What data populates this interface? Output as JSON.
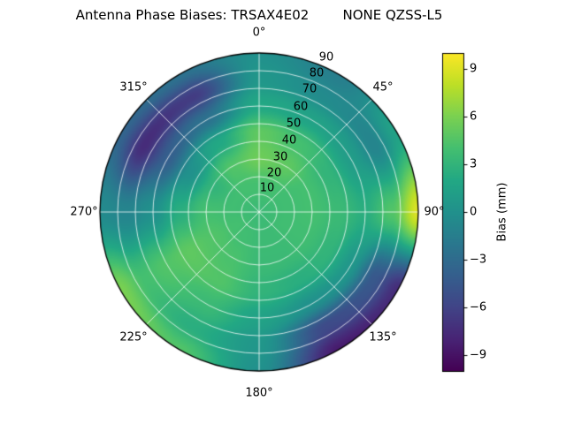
{
  "chart_data": {
    "type": "heatmap",
    "projection": "polar",
    "title": "Antenna Phase Biases: TRSAX4E02        NONE QZSS-L5",
    "angular_ticks": [
      "0°",
      "45°",
      "90°",
      "135°",
      "180°",
      "225°",
      "270°",
      "315°"
    ],
    "radial_ticks": [
      "10",
      "20",
      "30",
      "40",
      "50",
      "60",
      "70",
      "80",
      "90"
    ],
    "radial_axis": {
      "min": 0,
      "max": 90,
      "label_angle_deg": 22.5
    },
    "grid_on": true,
    "colorbar": {
      "label": "Bias (mm)",
      "vmin": -10,
      "vmax": 10,
      "ticks": [
        9,
        6,
        3,
        0,
        -3,
        -6,
        -9
      ],
      "tick_labels": [
        "9",
        "6",
        "3",
        "0",
        "−3",
        "−6",
        "−9"
      ]
    },
    "colormap": {
      "name": "viridis",
      "stops": [
        [
          0.0,
          "#440154"
        ],
        [
          0.1,
          "#482475"
        ],
        [
          0.2,
          "#414487"
        ],
        [
          0.3,
          "#355f8d"
        ],
        [
          0.4,
          "#2a788e"
        ],
        [
          0.5,
          "#21918c"
        ],
        [
          0.6,
          "#22a884"
        ],
        [
          0.7,
          "#44bf70"
        ],
        [
          0.8,
          "#7ad151"
        ],
        [
          0.9,
          "#bddf26"
        ],
        [
          1.0,
          "#fde725"
        ]
      ]
    },
    "grid": {
      "azimuth_deg": [
        0,
        30,
        60,
        90,
        120,
        150,
        180,
        210,
        240,
        270,
        300,
        330,
        360
      ],
      "zenith_deg": [
        0,
        15,
        30,
        45,
        60,
        75,
        90
      ],
      "bias_mm": [
        [
          3.5,
          4.0,
          5.5,
          5.0,
          2.0,
          0.5,
          0.0
        ],
        [
          3.5,
          4.0,
          5.0,
          4.0,
          1.5,
          -0.5,
          -1.5
        ],
        [
          3.5,
          3.8,
          4.0,
          3.0,
          1.0,
          -1.0,
          1.5
        ],
        [
          3.5,
          3.8,
          4.0,
          3.5,
          2.5,
          4.5,
          9.0
        ],
        [
          3.5,
          3.8,
          3.8,
          3.0,
          0.5,
          -4.5,
          -7.5
        ],
        [
          3.5,
          3.6,
          3.5,
          2.5,
          0.0,
          -5.5,
          -8.5
        ],
        [
          3.5,
          3.6,
          3.5,
          3.0,
          1.5,
          0.5,
          0.0
        ],
        [
          3.5,
          3.8,
          4.2,
          4.5,
          3.5,
          2.5,
          4.5
        ],
        [
          3.5,
          4.0,
          4.5,
          5.0,
          4.5,
          4.0,
          6.0
        ],
        [
          3.5,
          3.8,
          4.0,
          2.5,
          0.0,
          -1.0,
          -0.5
        ],
        [
          3.5,
          3.8,
          3.0,
          0.0,
          -4.0,
          -7.5,
          -3.5
        ],
        [
          3.5,
          4.0,
          4.5,
          2.0,
          -2.5,
          -6.5,
          -2.5
        ],
        [
          3.5,
          4.0,
          5.5,
          5.0,
          2.0,
          0.5,
          0.0
        ]
      ]
    },
    "style": {
      "grid_line_color": "rgba(255,255,255,0.75)",
      "axis_edge_color": "#000000",
      "background": "#ffffff"
    }
  }
}
